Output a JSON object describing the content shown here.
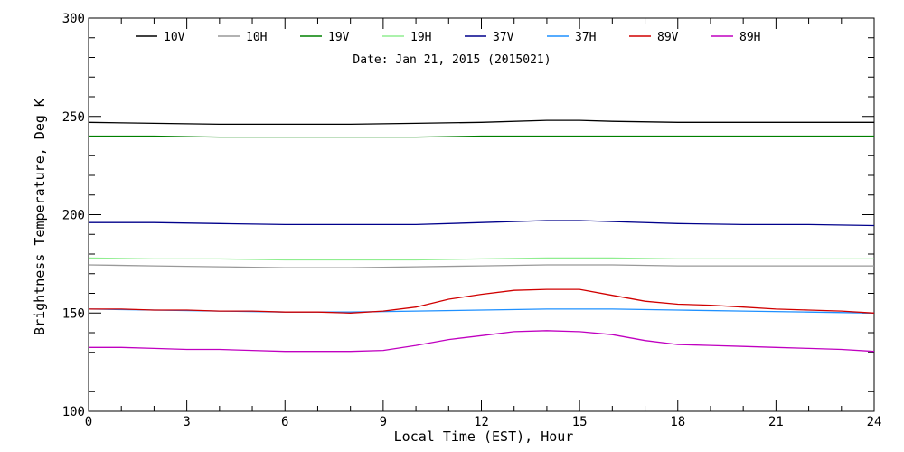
{
  "chart_data": {
    "type": "line",
    "annotation": "Date: Jan 21, 2015 (2015021)",
    "xlabel": "Local Time (EST), Hour",
    "ylabel": "Brightness Temperature, Deg K",
    "xlim": [
      0,
      24
    ],
    "ylim": [
      100,
      300
    ],
    "xticks": [
      0,
      3,
      6,
      9,
      12,
      15,
      18,
      21,
      24
    ],
    "yticks": [
      100,
      150,
      200,
      250,
      300
    ],
    "legend_position": "top",
    "grid": false,
    "series": [
      {
        "name": "10V",
        "color": "#000000",
        "x": [
          0,
          2,
          4,
          6,
          8,
          10,
          12,
          14,
          15,
          16,
          18,
          20,
          22,
          24
        ],
        "y": [
          247,
          246.5,
          246,
          246,
          246,
          246.5,
          247,
          248,
          248,
          247.5,
          247,
          247,
          247,
          247
        ]
      },
      {
        "name": "10H",
        "color": "#999999",
        "x": [
          0,
          2,
          4,
          6,
          8,
          10,
          12,
          14,
          15,
          16,
          18,
          20,
          22,
          24
        ],
        "y": [
          174.5,
          174,
          173.5,
          173,
          173,
          173.5,
          174,
          174.5,
          174.5,
          174.5,
          174,
          174,
          174,
          174
        ]
      },
      {
        "name": "19V",
        "color": "#008000",
        "x": [
          0,
          2,
          4,
          6,
          8,
          10,
          12,
          14,
          15,
          16,
          18,
          20,
          22,
          24
        ],
        "y": [
          240,
          240,
          239.5,
          239.5,
          239.5,
          239.5,
          240,
          240,
          240,
          240,
          240,
          240,
          240,
          240
        ]
      },
      {
        "name": "19H",
        "color": "#90ee90",
        "x": [
          0,
          2,
          4,
          6,
          8,
          10,
          12,
          14,
          15,
          16,
          18,
          20,
          22,
          24
        ],
        "y": [
          178,
          177.5,
          177.5,
          177,
          177,
          177,
          177.5,
          178,
          178,
          178,
          177.5,
          177.5,
          177.5,
          177.5
        ]
      },
      {
        "name": "37V",
        "color": "#00008b",
        "x": [
          0,
          2,
          4,
          6,
          8,
          10,
          12,
          14,
          15,
          16,
          18,
          20,
          22,
          24
        ],
        "y": [
          196,
          196,
          195.5,
          195,
          195,
          195,
          196,
          197,
          197,
          196.5,
          195.5,
          195,
          195,
          194.5
        ]
      },
      {
        "name": "37H",
        "color": "#1e90ff",
        "x": [
          0,
          2,
          4,
          6,
          8,
          10,
          12,
          14,
          15,
          16,
          18,
          20,
          22,
          24
        ],
        "y": [
          152,
          151.5,
          151,
          150.5,
          150.5,
          151,
          151.5,
          152,
          152,
          152,
          151.5,
          151,
          150.5,
          150
        ]
      },
      {
        "name": "89V",
        "color": "#d00000",
        "x": [
          0,
          1,
          2,
          3,
          4,
          5,
          6,
          7,
          8,
          9,
          10,
          11,
          12,
          13,
          14,
          15,
          16,
          17,
          18,
          19,
          20,
          21,
          22,
          23,
          24
        ],
        "y": [
          152,
          152,
          151.5,
          151.5,
          151,
          151,
          150.5,
          150.5,
          150,
          151,
          153,
          157,
          159.5,
          161.5,
          162,
          162,
          159,
          156,
          154.5,
          154,
          153,
          152,
          151.5,
          151,
          150
        ]
      },
      {
        "name": "89H",
        "color": "#c000c0",
        "x": [
          0,
          1,
          2,
          3,
          4,
          5,
          6,
          7,
          8,
          9,
          10,
          11,
          12,
          13,
          14,
          15,
          16,
          17,
          18,
          19,
          20,
          21,
          22,
          23,
          24
        ],
        "y": [
          132.5,
          132.5,
          132,
          131.5,
          131.5,
          131,
          130.5,
          130.5,
          130.5,
          131,
          133.5,
          136.5,
          138.5,
          140.5,
          141,
          140.5,
          139,
          136,
          134,
          133.5,
          133,
          132.5,
          132,
          131.5,
          130.5
        ]
      }
    ]
  }
}
